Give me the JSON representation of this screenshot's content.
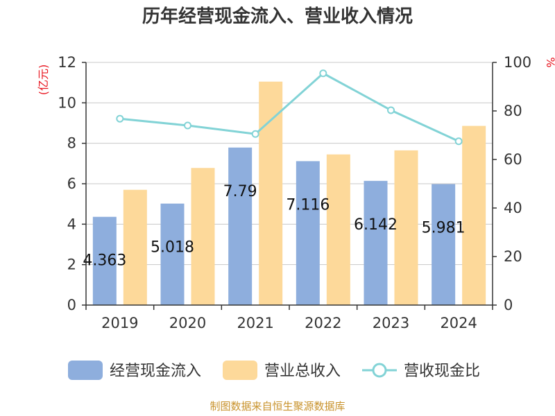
{
  "chart_data": {
    "type": "bar",
    "title": "历年经营现金流入、营业收入情况",
    "categories": [
      "2019",
      "2020",
      "2021",
      "2022",
      "2023",
      "2024"
    ],
    "series": [
      {
        "name": "经营现金流入",
        "kind": "bar",
        "axis": "left",
        "color": "#8eaedd",
        "values": [
          4.363,
          5.018,
          7.79,
          7.116,
          6.142,
          5.981
        ],
        "labels": [
          "4.363",
          "5.018",
          "7.79",
          "7.116",
          "6.142",
          "5.981"
        ]
      },
      {
        "name": "营业总收入",
        "kind": "bar",
        "axis": "left",
        "color": "#fdd99a",
        "values": [
          5.7,
          6.78,
          11.05,
          7.45,
          7.65,
          8.86
        ]
      },
      {
        "name": "营收现金比",
        "kind": "line",
        "axis": "right",
        "color": "#82d3d6",
        "values": [
          76.8,
          74.0,
          70.5,
          95.5,
          80.3,
          67.5
        ]
      }
    ],
    "left_axis": {
      "unit": "(亿元)",
      "ylim": [
        0,
        12
      ],
      "ticks": [
        "0",
        "2",
        "4",
        "6",
        "8",
        "10",
        "12"
      ]
    },
    "right_axis": {
      "unit": "%",
      "ylim": [
        0,
        100
      ],
      "ticks": [
        "0",
        "20",
        "40",
        "60",
        "80",
        "100"
      ]
    },
    "grid": true,
    "legend_position": "bottom"
  },
  "footer": {
    "source": "制图数据来自恒生聚源数据库"
  }
}
